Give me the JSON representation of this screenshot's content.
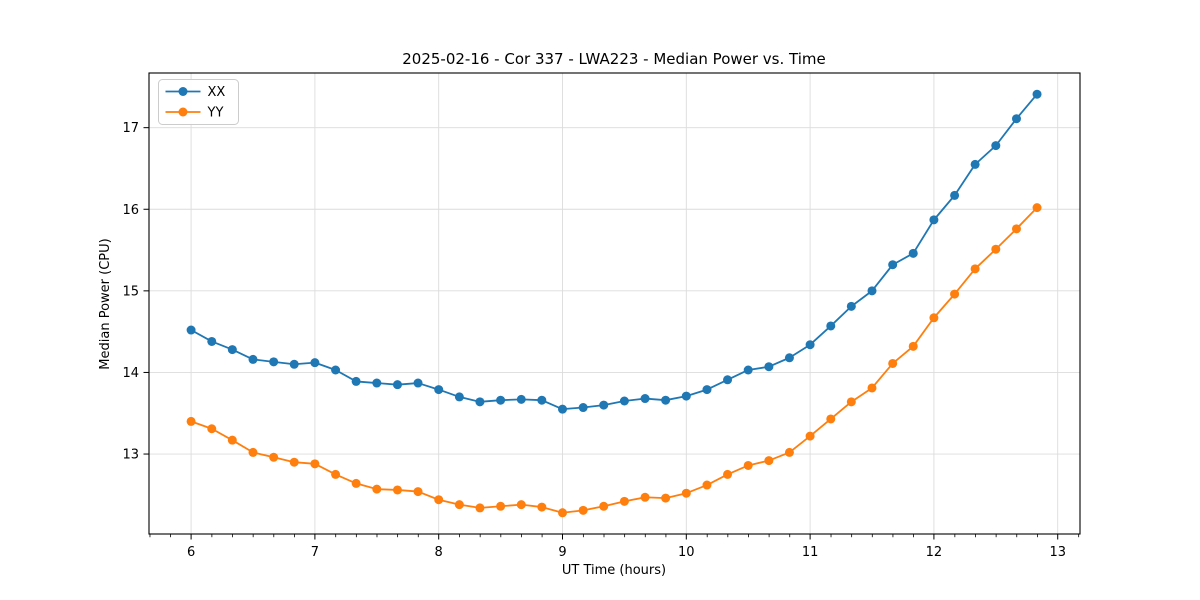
{
  "chart_data": {
    "type": "line",
    "title": "2025-02-16 - Cor 337 - LWA223 - Median Power vs. Time",
    "xlabel": "UT Time (hours)",
    "ylabel": "Median Power (CPU)",
    "xlim": [
      5.66,
      13.18
    ],
    "ylim": [
      12.02,
      17.67
    ],
    "x_ticks": [
      6,
      7,
      8,
      9,
      10,
      11,
      12,
      13
    ],
    "y_ticks": [
      13,
      14,
      15,
      16,
      17
    ],
    "x_minor_tick_interval": 0.1667,
    "grid": true,
    "grid_color": "#dcdcdc",
    "spine_color": "#000000",
    "background": "#ffffff",
    "legend_position": "upper-left",
    "x": [
      6.0,
      6.167,
      6.333,
      6.5,
      6.667,
      6.833,
      7.0,
      7.167,
      7.333,
      7.5,
      7.667,
      7.833,
      8.0,
      8.167,
      8.333,
      8.5,
      8.667,
      8.833,
      9.0,
      9.167,
      9.333,
      9.5,
      9.667,
      9.833,
      10.0,
      10.167,
      10.333,
      10.5,
      10.667,
      10.833,
      11.0,
      11.167,
      11.333,
      11.5,
      11.667,
      11.833,
      12.0,
      12.167,
      12.333,
      12.5,
      12.667,
      12.833
    ],
    "series": [
      {
        "name": "XX",
        "color": "#1f77b4",
        "marker": "circle",
        "values": [
          14.52,
          14.38,
          14.28,
          14.16,
          14.13,
          14.1,
          14.12,
          14.03,
          13.89,
          13.87,
          13.85,
          13.87,
          13.79,
          13.7,
          13.64,
          13.66,
          13.67,
          13.66,
          13.55,
          13.57,
          13.6,
          13.65,
          13.68,
          13.66,
          13.71,
          13.79,
          13.91,
          14.03,
          14.07,
          14.18,
          14.34,
          14.57,
          14.81,
          15.0,
          15.32,
          15.46,
          15.87,
          16.17,
          16.55,
          16.78,
          17.11,
          17.41
        ]
      },
      {
        "name": "YY",
        "color": "#ff7f0e",
        "marker": "circle",
        "values": [
          13.4,
          13.31,
          13.17,
          13.02,
          12.96,
          12.9,
          12.88,
          12.75,
          12.64,
          12.57,
          12.56,
          12.54,
          12.44,
          12.38,
          12.34,
          12.36,
          12.38,
          12.35,
          12.28,
          12.31,
          12.36,
          12.42,
          12.47,
          12.46,
          12.52,
          12.62,
          12.75,
          12.86,
          12.92,
          13.02,
          13.22,
          13.43,
          13.64,
          13.81,
          14.11,
          14.32,
          14.67,
          14.96,
          15.27,
          15.51,
          15.76,
          16.02
        ]
      }
    ]
  }
}
